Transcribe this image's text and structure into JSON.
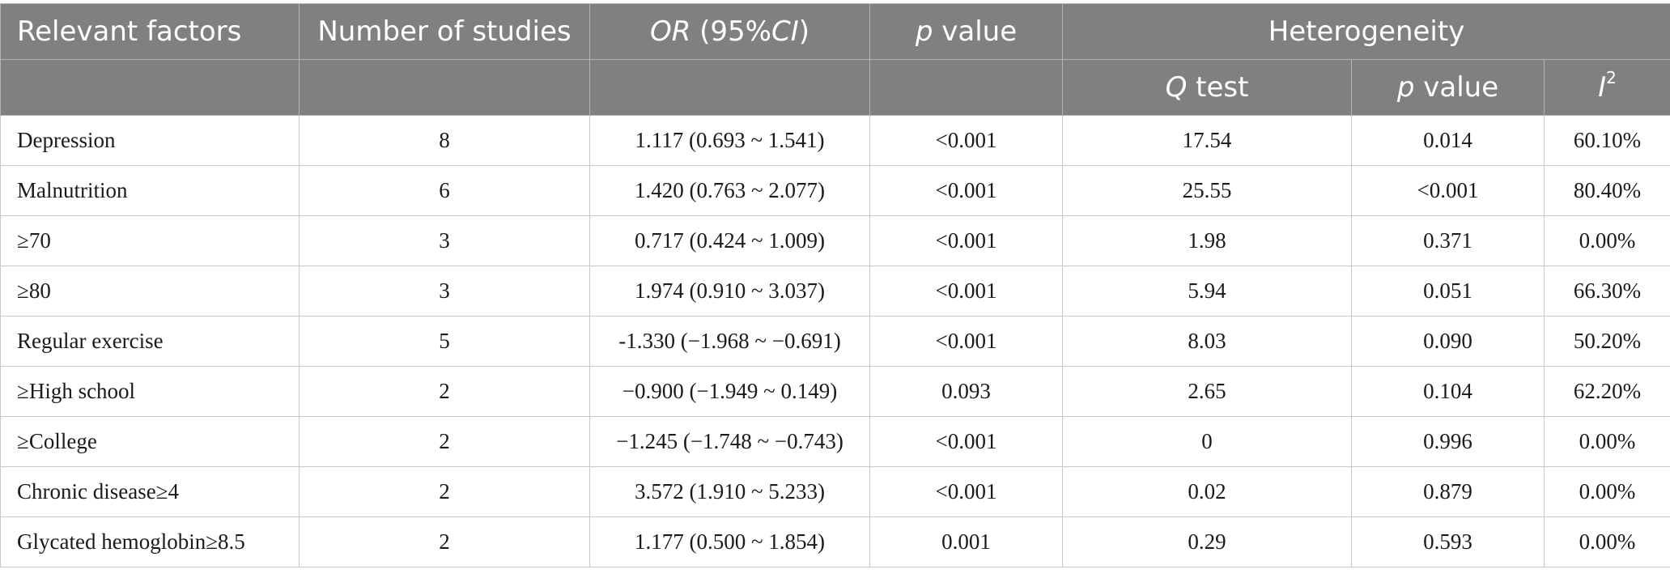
{
  "table": {
    "headers": {
      "factor": "Relevant factors",
      "studies": "Number of studies",
      "or_italic": "OR",
      "or_ci_open": " (95%",
      "or_ci_italic": "CI",
      "or_ci_close": ")",
      "p_italic": "p",
      "p_rest": " value",
      "heterogeneity": "Heterogeneity",
      "q_italic": "Q",
      "q_rest": " test",
      "hp_italic": "p",
      "hp_rest": " value",
      "i_italic": "I",
      "i_sup": "2"
    },
    "rows": [
      {
        "factor": "Depression",
        "studies": "8",
        "or": "1.117 (0.693 ~ 1.541)",
        "p": "<0.001",
        "q": "17.54",
        "hp": "0.014",
        "i2": "60.10%"
      },
      {
        "factor": "Malnutrition",
        "studies": "6",
        "or": "1.420 (0.763 ~ 2.077)",
        "p": "<0.001",
        "q": "25.55",
        "hp": "<0.001",
        "i2": "80.40%"
      },
      {
        "factor": "≥70",
        "studies": "3",
        "or": "0.717 (0.424 ~ 1.009)",
        "p": "<0.001",
        "q": "1.98",
        "hp": "0.371",
        "i2": "0.00%"
      },
      {
        "factor": "≥80",
        "studies": "3",
        "or": "1.974 (0.910 ~ 3.037)",
        "p": "<0.001",
        "q": "5.94",
        "hp": "0.051",
        "i2": "66.30%"
      },
      {
        "factor": "Regular exercise",
        "studies": "5",
        "or": "-1.330 (−1.968 ~ −0.691)",
        "p": "<0.001",
        "q": "8.03",
        "hp": "0.090",
        "i2": "50.20%"
      },
      {
        "factor": "≥High school",
        "studies": "2",
        "or": "−0.900 (−1.949 ~ 0.149)",
        "p": "0.093",
        "q": "2.65",
        "hp": "0.104",
        "i2": "62.20%"
      },
      {
        "factor": "≥College",
        "studies": "2",
        "or": "−1.245 (−1.748 ~ −0.743)",
        "p": "<0.001",
        "q": "0",
        "hp": "0.996",
        "i2": "0.00%"
      },
      {
        "factor": "Chronic disease≥4",
        "studies": "2",
        "or": "3.572 (1.910 ~ 5.233)",
        "p": "<0.001",
        "q": "0.02",
        "hp": "0.879",
        "i2": "0.00%"
      },
      {
        "factor": "Glycated hemoglobin≥8.5",
        "studies": "2",
        "or": "1.177 (0.500 ~ 1.854)",
        "p": "0.001",
        "q": "0.29",
        "hp": "0.593",
        "i2": "0.00%"
      }
    ]
  }
}
